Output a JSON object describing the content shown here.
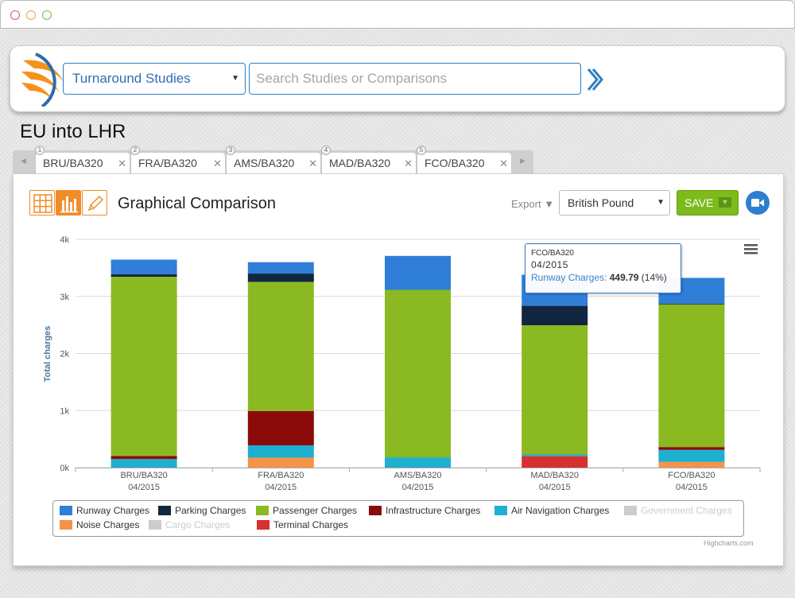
{
  "header": {
    "study_select": "Turnaround Studies",
    "search_placeholder": "Search Studies or Comparisons"
  },
  "page_title": "EU into LHR",
  "tabs": [
    {
      "num": "1",
      "label": "BRU/BA320"
    },
    {
      "num": "2",
      "label": "FRA/BA320"
    },
    {
      "num": "3",
      "label": "AMS/BA320"
    },
    {
      "num": "4",
      "label": "MAD/BA320"
    },
    {
      "num": "5",
      "label": "FCO/BA320"
    }
  ],
  "panel": {
    "title": "Graphical Comparison",
    "export_label": "Export",
    "currency": "British Pound",
    "save_label": "SAVE",
    "active_view": "chart"
  },
  "tooltip": {
    "category": "FCO/BA320",
    "date": "04/2015",
    "series": "Runway Charges:",
    "value": "449.79",
    "percent": "(14%)"
  },
  "credit": "Highcharts.com",
  "chart_data": {
    "type": "bar",
    "stacked": true,
    "ylabel": "Total charges",
    "ylim": [
      0,
      4000
    ],
    "ytick_labels": [
      "0k",
      "1k",
      "2k",
      "3k",
      "4k"
    ],
    "ytick_values": [
      0,
      1000,
      2000,
      3000,
      4000
    ],
    "grid": true,
    "legend_position": "bottom",
    "categories": [
      {
        "name": "BRU/BA320",
        "date": "04/2015"
      },
      {
        "name": "FRA/BA320",
        "date": "04/2015"
      },
      {
        "name": "AMS/BA320",
        "date": "04/2015"
      },
      {
        "name": "MAD/BA320",
        "date": "04/2015"
      },
      {
        "name": "FCO/BA320",
        "date": "04/2015"
      }
    ],
    "series": [
      {
        "name": "Noise Charges",
        "color": "#f59449",
        "visible": true,
        "values": [
          0,
          175,
          0,
          0,
          100
        ]
      },
      {
        "name": "Terminal Charges",
        "color": "#d63031",
        "visible": true,
        "values": [
          0,
          0,
          0,
          200,
          0
        ]
      },
      {
        "name": "Air Navigation Charges",
        "color": "#1fafcf",
        "visible": true,
        "values": [
          150,
          215,
          180,
          30,
          210
        ]
      },
      {
        "name": "Infrastructure Charges",
        "color": "#8b0a0a",
        "visible": true,
        "values": [
          55,
          600,
          0,
          0,
          50
        ]
      },
      {
        "name": "Passenger Charges",
        "color": "#8ab922",
        "visible": true,
        "values": [
          3140,
          2265,
          2935,
          2265,
          2500
        ]
      },
      {
        "name": "Parking Charges",
        "color": "#112640",
        "visible": true,
        "values": [
          45,
          145,
          0,
          340,
          15
        ]
      },
      {
        "name": "Runway Charges",
        "color": "#2f7ed8",
        "visible": true,
        "values": [
          255,
          200,
          595,
          545,
          449.79
        ]
      },
      {
        "name": "Government Charges",
        "color": "#cccccc",
        "visible": false,
        "values": [
          0,
          0,
          0,
          0,
          0
        ]
      },
      {
        "name": "Cargo Charges",
        "color": "#cccccc",
        "visible": false,
        "values": [
          0,
          0,
          0,
          0,
          0
        ]
      }
    ],
    "legend_order": [
      "Runway Charges",
      "Parking Charges",
      "Passenger Charges",
      "Infrastructure Charges",
      "Air Navigation Charges",
      "Government Charges",
      "Noise Charges",
      "Cargo Charges",
      "Terminal Charges"
    ]
  }
}
